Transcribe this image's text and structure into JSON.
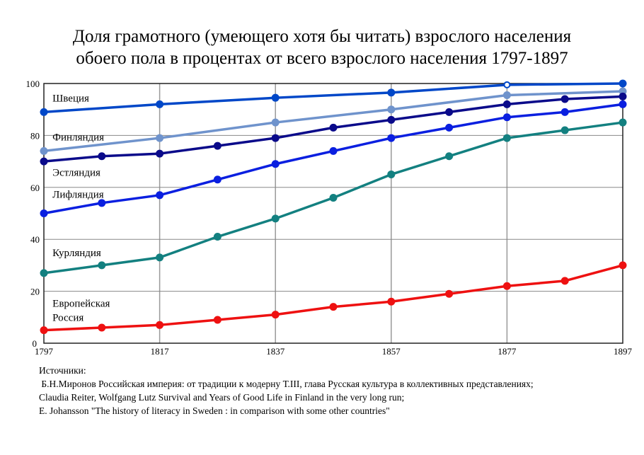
{
  "chart_data": {
    "type": "line",
    "title": [
      "Доля грамотного (умеющего хотя бы читать) взрослого населения",
      "обоего пола в процентах от всего взрослого населения 1797-1897"
    ],
    "xlabel": "",
    "ylabel": "",
    "xlim": [
      1797,
      1897
    ],
    "ylim": [
      0,
      100
    ],
    "xticks": [
      "1797",
      "1817",
      "1837",
      "1857",
      "1877",
      "1897"
    ],
    "yticks": [
      "0",
      "20",
      "40",
      "60",
      "80",
      "100"
    ],
    "grid": true,
    "series": [
      {
        "name": "Швеция",
        "color": "#0047c8",
        "x": [
          1797,
          1817,
          1837,
          1857,
          1877,
          1897
        ],
        "values": [
          89,
          92,
          94.5,
          96.5,
          99.5,
          100
        ]
      },
      {
        "name": "Финляндия",
        "color": "#6f93cc",
        "x": [
          1797,
          1817,
          1837,
          1857,
          1877,
          1897
        ],
        "values": [
          74,
          79,
          85,
          90,
          95.5,
          97
        ]
      },
      {
        "name": "Эстляндия",
        "color": "#0a0a8a",
        "x": [
          1797,
          1807,
          1817,
          1827,
          1837,
          1847,
          1857,
          1867,
          1877,
          1887,
          1897
        ],
        "values": [
          70,
          72,
          73,
          76,
          79,
          83,
          86,
          89,
          92,
          94,
          95
        ]
      },
      {
        "name": "Лифляндия",
        "color": "#0a1fe0",
        "x": [
          1797,
          1807,
          1817,
          1827,
          1837,
          1847,
          1857,
          1867,
          1877,
          1887,
          1897
        ],
        "values": [
          50,
          54,
          57,
          63,
          69,
          74,
          79,
          83,
          87,
          89,
          92
        ]
      },
      {
        "name": "Курляндия",
        "color": "#138080",
        "x": [
          1797,
          1807,
          1817,
          1827,
          1837,
          1847,
          1857,
          1867,
          1877,
          1887,
          1897
        ],
        "values": [
          27,
          30,
          33,
          41,
          48,
          56,
          65,
          72,
          79,
          82,
          85
        ]
      },
      {
        "name": "Европейская Россия",
        "color": "#ee1111",
        "x": [
          1797,
          1807,
          1817,
          1827,
          1837,
          1847,
          1857,
          1867,
          1877,
          1887,
          1897
        ],
        "values": [
          5,
          6,
          7,
          9,
          11,
          14,
          16,
          19,
          22,
          24,
          30
        ]
      }
    ],
    "series_labels": [
      {
        "lines": [
          "Швеция"
        ],
        "anchor": [
          1798,
          93
        ]
      },
      {
        "lines": [
          "Финляндия"
        ],
        "anchor": [
          1798,
          78
        ]
      },
      {
        "lines": [
          "Эстляндия"
        ],
        "anchor": [
          1798,
          64.5
        ]
      },
      {
        "lines": [
          "Лифляндия"
        ],
        "anchor": [
          1798,
          56
        ]
      },
      {
        "lines": [
          "Курляндия"
        ],
        "anchor": [
          1798,
          33.5
        ]
      },
      {
        "lines": [
          "Европейская",
          "Россия"
        ],
        "anchor": [
          1798,
          14
        ]
      }
    ]
  },
  "sources": {
    "heading": "Источники:",
    "lines": [
      " Б.Н.Миронов Российская империя: от традиции к модерну Т.III, глава Русская культура в коллективных представлениях;",
      "Claudia Reiter, Wolfgang Lutz Survival and Years of Good Life in Finland in the very long run;",
      "E. Johansson \"The history of literacy in Sweden : in comparison with some other countries\""
    ]
  }
}
